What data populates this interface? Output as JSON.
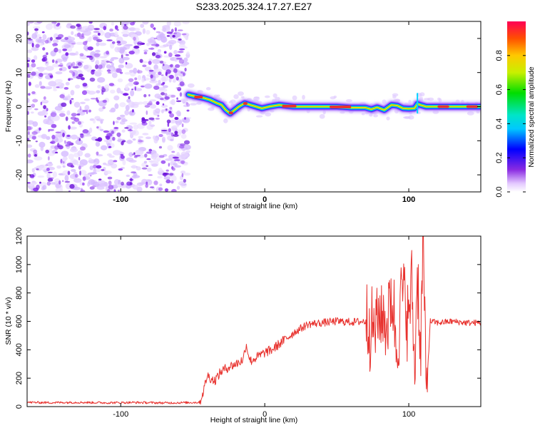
{
  "title": "S233.2025.324.17.27.E27",
  "colors": {
    "snr_line": "#e8322e",
    "ridge_core": "#e8322e",
    "noise_purple": "#7a1fe8"
  },
  "chart_data": [
    {
      "type": "heatmap",
      "name": "frequency-spectrogram",
      "xlabel": "Height of straight line (km)",
      "ylabel": "Frequency (Hz)",
      "xlim": [
        -165,
        150
      ],
      "ylim": [
        -25,
        25
      ],
      "xticks": [
        {
          "value": -100,
          "label": "-100"
        },
        {
          "value": 0,
          "label": "0"
        },
        {
          "value": 100,
          "label": "100"
        }
      ],
      "yticks": [
        {
          "value": 20,
          "label": "20"
        },
        {
          "value": 10,
          "label": "10"
        },
        {
          "value": 0,
          "label": "0"
        },
        {
          "value": -10,
          "label": "-10"
        },
        {
          "value": -20,
          "label": "-20"
        }
      ],
      "noise_region_x": [
        -165,
        -53
      ],
      "ridge": [
        [
          -53,
          3.5
        ],
        [
          -48,
          3.0
        ],
        [
          -42,
          2.5
        ],
        [
          -38,
          2.0
        ],
        [
          -33,
          1.0
        ],
        [
          -30,
          0.5
        ],
        [
          -27,
          -1.0
        ],
        [
          -24,
          -2.0
        ],
        [
          -21,
          -1.0
        ],
        [
          -18,
          0.0
        ],
        [
          -14,
          1.0
        ],
        [
          -10,
          0.5
        ],
        [
          -6,
          0.0
        ],
        [
          -2,
          -0.5
        ],
        [
          3,
          0.0
        ],
        [
          10,
          0.5
        ],
        [
          20,
          0.0
        ],
        [
          30,
          0.0
        ],
        [
          40,
          0.0
        ],
        [
          50,
          0.0
        ],
        [
          60,
          -0.3
        ],
        [
          70,
          -0.3
        ],
        [
          74,
          -0.8
        ],
        [
          78,
          -0.2
        ],
        [
          83,
          -1.0
        ],
        [
          88,
          0.5
        ],
        [
          92,
          0.3
        ],
        [
          96,
          -0.5
        ],
        [
          100,
          -0.6
        ],
        [
          104,
          -0.5
        ],
        [
          106,
          0.8
        ],
        [
          108,
          0.5
        ],
        [
          112,
          0.0
        ],
        [
          120,
          0.0
        ],
        [
          130,
          0.0
        ],
        [
          140,
          0.0
        ],
        [
          150,
          0.0
        ]
      ],
      "colorbar": {
        "label": "Normalized spectral amplitude",
        "range": [
          0.0,
          1.0
        ],
        "ticks": [
          "0.0",
          "0.2",
          "0.4",
          "0.6",
          "0.8"
        ],
        "tick_values": [
          0.0,
          0.2,
          0.4,
          0.6,
          0.8
        ]
      }
    },
    {
      "type": "line",
      "name": "snr-trace",
      "xlabel": "Height of straight line (km)",
      "ylabel": "SNR (10 * v/v)",
      "xlim": [
        -165,
        150
      ],
      "ylim": [
        0,
        1200
      ],
      "xticks": [
        {
          "value": -100,
          "label": "-100"
        },
        {
          "value": 0,
          "label": "0"
        },
        {
          "value": 100,
          "label": "100"
        }
      ],
      "yticks": [
        {
          "value": 0,
          "label": "0"
        },
        {
          "value": 200,
          "label": "200"
        },
        {
          "value": 400,
          "label": "400"
        },
        {
          "value": 600,
          "label": "600"
        },
        {
          "value": 800,
          "label": "800"
        },
        {
          "value": 1000,
          "label": "1000"
        },
        {
          "value": 1200,
          "label": "1200"
        }
      ],
      "series": [
        {
          "name": "SNR",
          "x": [
            -165,
            -150,
            -130,
            -110,
            -90,
            -70,
            -55,
            -45,
            -42,
            -40,
            -35,
            -30,
            -25,
            -20,
            -15,
            -13,
            -10,
            -5,
            0,
            5,
            10,
            15,
            20,
            25,
            30,
            40,
            50,
            60,
            70,
            75,
            80,
            85,
            88,
            92,
            95,
            100,
            102,
            104,
            106,
            108,
            110,
            112,
            115,
            120,
            130,
            140,
            150
          ],
          "y": [
            30,
            28,
            30,
            27,
            29,
            26,
            28,
            30,
            130,
            220,
            180,
            250,
            280,
            300,
            330,
            440,
            320,
            350,
            380,
            400,
            440,
            480,
            520,
            550,
            580,
            590,
            600,
            595,
            600,
            560,
            650,
            580,
            800,
            400,
            850,
            600,
            950,
            230,
            1000,
            350,
            1200,
            60,
            600,
            590,
            600,
            590,
            590
          ]
        }
      ]
    }
  ]
}
